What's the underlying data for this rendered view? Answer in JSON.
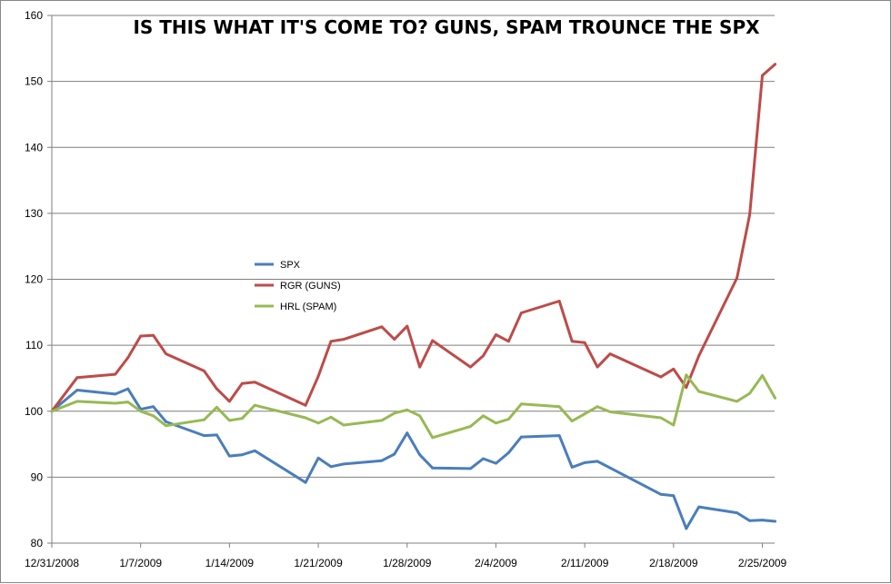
{
  "chart_data": {
    "type": "line",
    "title": "IS THIS WHAT IT'S COME TO?  GUNS, SPAM TROUNCE THE SPX",
    "xlabel": "",
    "ylabel": "",
    "ylim": [
      80,
      160
    ],
    "yticks": [
      "80",
      "90",
      "100",
      "110",
      "120",
      "130",
      "140",
      "150",
      "160"
    ],
    "xtick_labels": [
      "12/31/2008",
      "1/7/2009",
      "1/14/2009",
      "1/21/2009",
      "1/28/2009",
      "2/4/2009",
      "2/11/2009",
      "2/18/2009",
      "2/25/2009"
    ],
    "grid": "horizontal",
    "legend": "center-left",
    "x": [
      "12/31/2008",
      "1/2/2009",
      "1/5/2009",
      "1/6/2009",
      "1/7/2009",
      "1/8/2009",
      "1/9/2009",
      "1/12/2009",
      "1/13/2009",
      "1/14/2009",
      "1/15/2009",
      "1/16/2009",
      "1/20/2009",
      "1/21/2009",
      "1/22/2009",
      "1/23/2009",
      "1/26/2009",
      "1/27/2009",
      "1/28/2009",
      "1/29/2009",
      "1/30/2009",
      "2/2/2009",
      "2/3/2009",
      "2/4/2009",
      "2/5/2009",
      "2/6/2009",
      "2/9/2009",
      "2/10/2009",
      "2/11/2009",
      "2/12/2009",
      "2/13/2009",
      "2/17/2009",
      "2/18/2009",
      "2/19/2009",
      "2/20/2009",
      "2/23/2009",
      "2/24/2009",
      "2/25/2009",
      "2/26/2009"
    ],
    "series": [
      {
        "name": "SPX",
        "color": "#4a7ebb",
        "values": [
          100.0,
          103.2,
          102.6,
          103.4,
          100.3,
          100.7,
          98.4,
          96.3,
          96.4,
          93.2,
          93.4,
          94.0,
          89.2,
          92.9,
          91.6,
          92.0,
          92.5,
          93.5,
          96.7,
          93.4,
          91.4,
          91.3,
          92.8,
          92.1,
          93.7,
          96.1,
          96.3,
          91.5,
          92.2,
          92.4,
          91.4,
          87.4,
          87.2,
          82.2,
          85.5,
          84.6,
          83.4,
          83.5,
          83.3
        ]
      },
      {
        "name": "RGR (GUNS)",
        "color": "#be4b48",
        "values": [
          100.0,
          105.1,
          105.6,
          108.1,
          111.4,
          111.5,
          108.7,
          106.1,
          103.4,
          101.5,
          104.2,
          104.4,
          100.9,
          105.3,
          110.6,
          110.9,
          112.8,
          110.9,
          112.9,
          106.7,
          110.7,
          106.7,
          108.4,
          111.6,
          110.6,
          114.9,
          116.7,
          110.6,
          110.4,
          106.7,
          108.7,
          105.2,
          106.4,
          103.6,
          108.4,
          120.2,
          129.8,
          150.9,
          152.6
        ]
      },
      {
        "name": "HRL (SPAM)",
        "color": "#98b954",
        "values": [
          100.0,
          101.5,
          101.2,
          101.4,
          100.0,
          99.3,
          97.8,
          98.7,
          100.6,
          98.6,
          98.9,
          100.9,
          99.0,
          98.2,
          99.1,
          97.9,
          98.6,
          99.7,
          100.2,
          99.3,
          96.0,
          97.7,
          99.3,
          98.2,
          98.8,
          101.1,
          100.7,
          98.5,
          99.6,
          100.7,
          99.9,
          99.0,
          97.9,
          105.5,
          103.0,
          101.5,
          102.7,
          105.4,
          102.0
        ]
      }
    ]
  }
}
